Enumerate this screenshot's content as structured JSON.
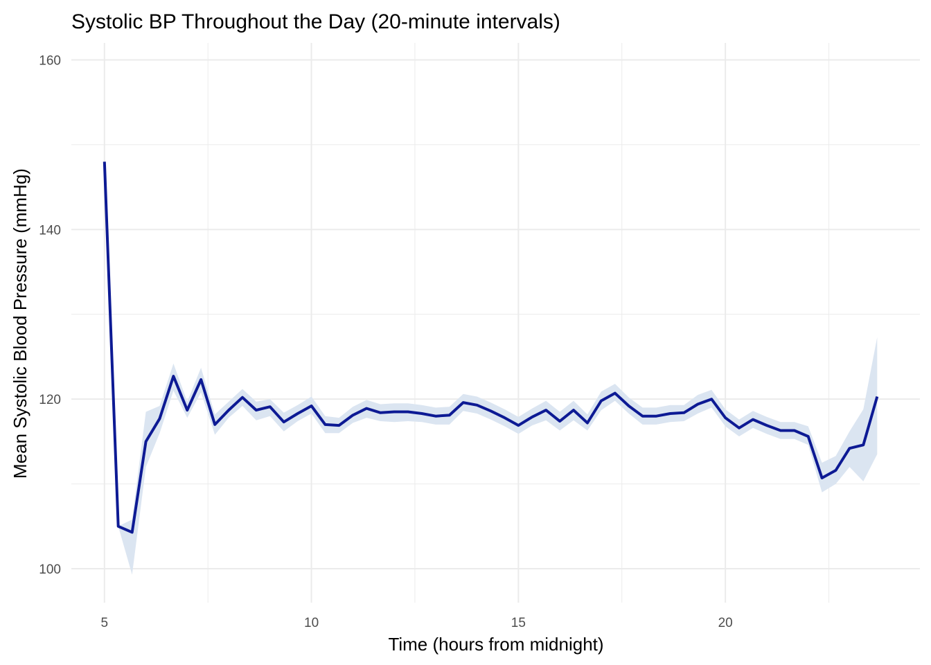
{
  "chart_data": {
    "type": "line",
    "title": "Systolic BP Throughout the Day (20-minute intervals)",
    "xlabel": "Time (hours from midnight)",
    "ylabel": "Mean Systolic Blood Pressure (mmHg)",
    "xlim": [
      4.2,
      24.7
    ],
    "ylim": [
      96,
      162
    ],
    "x_ticks": [
      5,
      10,
      15,
      20
    ],
    "y_ticks": [
      100,
      120,
      140,
      160
    ],
    "x_minor_ticks": [
      7.5,
      12.5,
      17.5,
      22.5
    ],
    "y_minor_ticks": [
      110,
      130,
      150
    ],
    "grid": true,
    "legend": "none",
    "colors": {
      "line": "#0d1a94",
      "ribbon": "#dbe5f1",
      "grid": "#ebebeb"
    },
    "series": [
      {
        "x": [
          5.0,
          5.333,
          5.667,
          6.0,
          6.333,
          6.667,
          7.0,
          7.333,
          7.667,
          8.0,
          8.333,
          8.667,
          9.0,
          9.333,
          9.667,
          10.0,
          10.333,
          10.667,
          11.0,
          11.333,
          11.667,
          12.0,
          12.333,
          12.667,
          13.0,
          13.333,
          13.667,
          14.0,
          14.333,
          14.667,
          15.0,
          15.333,
          15.667,
          16.0,
          16.333,
          16.667,
          17.0,
          17.333,
          17.667,
          18.0,
          18.333,
          18.667,
          19.0,
          19.333,
          19.667,
          20.0,
          20.333,
          20.667,
          21.0,
          21.333,
          21.667,
          22.0,
          22.333,
          22.667,
          23.0,
          23.333,
          23.667
        ],
        "y": [
          148.0,
          105.0,
          104.3,
          115.0,
          117.7,
          122.7,
          118.7,
          122.3,
          117.0,
          118.7,
          120.2,
          118.7,
          119.1,
          117.3,
          118.3,
          119.2,
          117.0,
          116.9,
          118.1,
          118.9,
          118.4,
          118.5,
          118.5,
          118.3,
          118.0,
          118.1,
          119.6,
          119.3,
          118.6,
          117.8,
          116.9,
          117.9,
          118.7,
          117.4,
          118.7,
          117.2,
          119.8,
          120.7,
          119.2,
          118.0,
          118.0,
          118.3,
          118.4,
          119.4,
          120.0,
          117.8,
          116.6,
          117.6,
          116.9,
          116.3,
          116.3,
          115.6,
          110.7,
          111.6,
          114.2,
          114.6,
          120.3
        ],
        "lower": [
          148.0,
          105.0,
          99.3,
          112.0,
          116.0,
          121.0,
          117.8,
          120.8,
          115.8,
          117.8,
          119.2,
          117.5,
          118.0,
          116.2,
          117.4,
          118.3,
          116.0,
          116.0,
          117.2,
          117.8,
          117.4,
          117.3,
          117.4,
          117.3,
          117.0,
          117.0,
          118.6,
          118.3,
          117.6,
          116.8,
          115.9,
          116.9,
          117.5,
          116.3,
          117.5,
          116.3,
          118.7,
          119.8,
          118.3,
          117.0,
          117.0,
          117.3,
          117.4,
          118.3,
          119.0,
          116.8,
          115.6,
          116.6,
          115.9,
          115.3,
          115.3,
          114.6,
          109.0,
          110.0,
          112.0,
          110.3,
          113.5
        ],
        "upper": [
          148.0,
          105.0,
          105.8,
          118.5,
          119.2,
          124.2,
          119.7,
          123.7,
          118.2,
          119.7,
          121.2,
          119.7,
          120.0,
          118.4,
          119.3,
          120.3,
          118.0,
          117.8,
          119.1,
          119.9,
          119.4,
          119.5,
          119.5,
          119.3,
          119.0,
          119.1,
          120.6,
          120.3,
          119.6,
          118.8,
          117.9,
          118.9,
          119.8,
          118.5,
          119.8,
          118.2,
          120.9,
          121.8,
          120.2,
          119.0,
          119.0,
          119.3,
          119.3,
          120.5,
          121.1,
          118.8,
          117.6,
          118.6,
          117.9,
          117.3,
          117.3,
          116.8,
          112.5,
          113.3,
          116.2,
          118.8,
          127.3
        ]
      }
    ]
  }
}
